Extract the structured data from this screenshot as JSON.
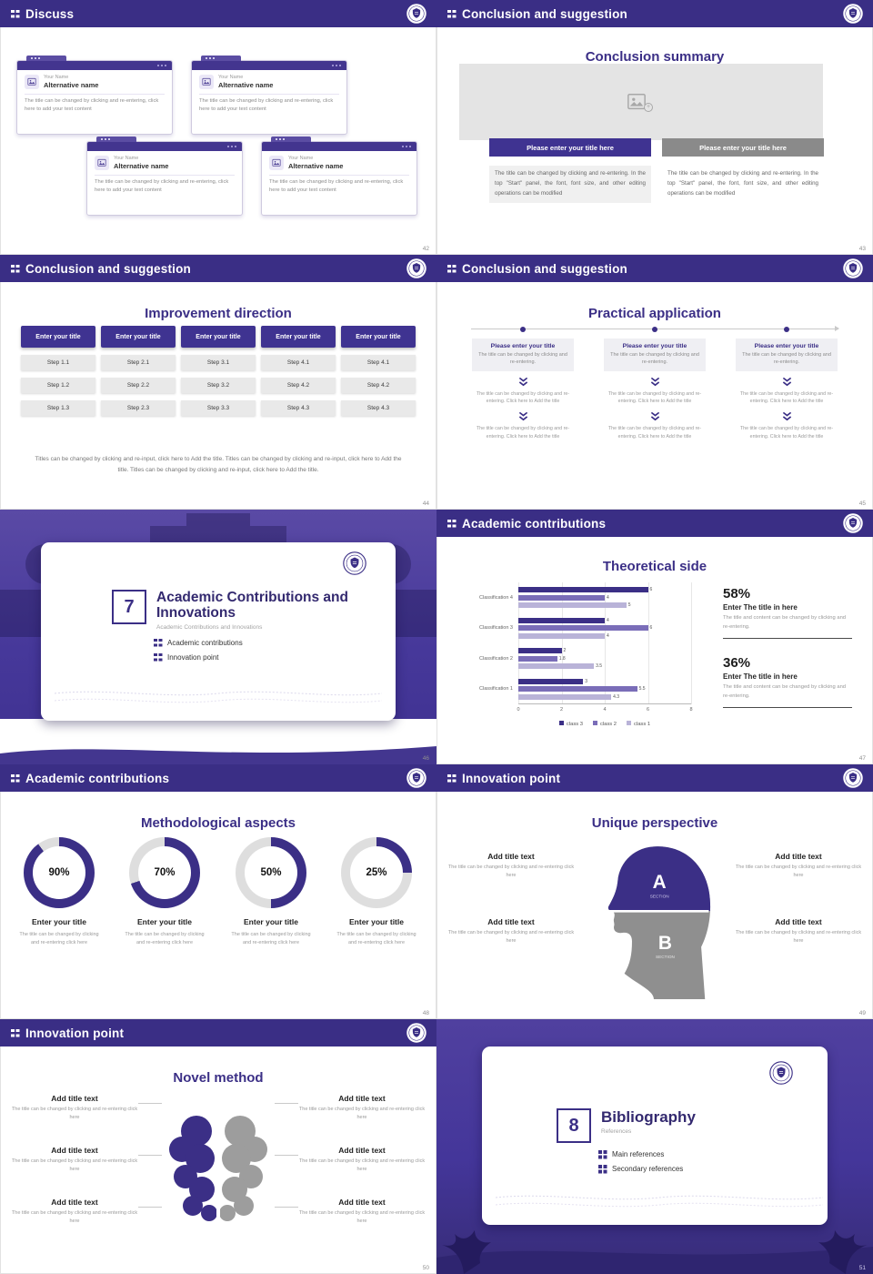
{
  "icons": {
    "header_bullet": "grid-dots",
    "logo": "university-crest",
    "image_placeholder": "picture",
    "chevron": "double-chevron-down"
  },
  "theme": {
    "header_bg": "#3a2e85",
    "accent": "#3b2f86",
    "button_purple": "#3f3391",
    "button_gray": "#8a8a8a",
    "mid_purple": "#7a6db8",
    "light_purple": "#b9b3d8",
    "section_bg": "#46389a",
    "donut_rest": "#dedede"
  },
  "slides": {
    "discuss": {
      "header": "Discuss",
      "page": "42",
      "cards": [
        {
          "name": "Your Name",
          "alt": "Alternative name",
          "body": "The title can be changed by clicking and re-entering, click here to add your text content"
        },
        {
          "name": "Your Name",
          "alt": "Alternative name",
          "body": "The title can be changed by clicking and re-entering, click here to add your text content"
        },
        {
          "name": "Your Name",
          "alt": "Alternative name",
          "body": "The title can be changed by clicking and re-entering, click here to add your text content"
        },
        {
          "name": "Your Name",
          "alt": "Alternative name",
          "body": "The title can be changed by clicking and re-entering, click here to add your text content"
        }
      ]
    },
    "summary": {
      "header": "Conclusion and suggestion",
      "title": "Conclusion summary",
      "page": "43",
      "left": {
        "button": "Please enter your title here",
        "body": "The title can be changed by clicking and re-entering. In the top \"Start\" panel, the font, font size, and other editing operations can be modified"
      },
      "right": {
        "button": "Please enter your title here",
        "body": "The title can be changed by clicking and re-entering. In the top \"Start\" panel, the font, font size, and other editing operations can be modified"
      }
    },
    "improvement": {
      "header": "Conclusion and suggestion",
      "title": "Improvement direction",
      "page": "44",
      "button_label": "Enter your title",
      "columns": [
        {
          "steps": [
            "Step 1.1",
            "Step 1.2",
            "Step 1.3"
          ]
        },
        {
          "steps": [
            "Step 2.1",
            "Step 2.2",
            "Step 2.3"
          ]
        },
        {
          "steps": [
            "Step 3.1",
            "Step 3.2",
            "Step 3.3"
          ]
        },
        {
          "steps": [
            "Step 4.1",
            "Step 4.2",
            "Step 4.3"
          ]
        },
        {
          "steps": [
            "Step 4.1",
            "Step 4.2",
            "Step 4.3"
          ]
        }
      ],
      "footer": "Titles can be changed by clicking and re-input, click here to Add the title. Titles can be changed by clicking and re-input, click here to Add the title. Titles can be changed by clicking and re-input, click here to Add the title."
    },
    "practical": {
      "header": "Conclusion and suggestion",
      "title": "Practical application",
      "page": "45",
      "box_title": "Please enter your title",
      "box_body": "The title can be changed by clicking and re-entering.",
      "step_text": "The title can be changed by clicking and re-entering. Click here to Add the title"
    },
    "section7": {
      "number": "7",
      "title": "Academic Contributions and Innovations",
      "subtitle": "Academic Contributions and Innovations",
      "items": [
        "Academic contributions",
        "Innovation point"
      ],
      "page": "46"
    },
    "theoretical": {
      "header": "Academic contributions",
      "title": "Theoretical side",
      "page": "47",
      "stats": [
        {
          "pct": "58%",
          "title": "Enter The title in here",
          "body": "The title and content can be changed by clicking and re-entering."
        },
        {
          "pct": "36%",
          "title": "Enter The title in here",
          "body": "The title and content can be changed by clicking and re-entering."
        }
      ]
    },
    "methodological": {
      "header": "Academic contributions",
      "title": "Methodological aspects",
      "page": "48",
      "item_title": "Enter your title",
      "item_body": "The title can be changed by clicking and re-entering click here",
      "donuts": [
        {
          "pct": 90,
          "label": "90%"
        },
        {
          "pct": 70,
          "label": "70%"
        },
        {
          "pct": 50,
          "label": "50%"
        },
        {
          "pct": 25,
          "label": "25%"
        }
      ]
    },
    "unique": {
      "header": "Innovation point",
      "title": "Unique perspective",
      "page": "49",
      "item_title": "Add title text",
      "item_body": "The title can be changed by clicking and re-entering click here",
      "section_a": "A",
      "section_b": "B",
      "section_label": "SECTION"
    },
    "novel": {
      "header": "Innovation point",
      "title": "Novel method",
      "page": "50",
      "item_title": "Add title text",
      "item_body": "The title can be changed by clicking and re-entering click here"
    },
    "section8": {
      "number": "8",
      "title": "Bibliography",
      "subtitle": "References",
      "items": [
        "Main references",
        "Secondary references"
      ],
      "page": "51"
    }
  },
  "chart_data": {
    "type": "bar",
    "orientation": "horizontal",
    "title": "Theoretical side",
    "categories": [
      "Classification 4",
      "Classification 3",
      "Classification 2",
      "Classification 1"
    ],
    "series": [
      {
        "name": "class 3",
        "color": "#3b2f86",
        "values": [
          6,
          4,
          2,
          3
        ]
      },
      {
        "name": "class 2",
        "color": "#7a6db8",
        "values": [
          4,
          6,
          1.8,
          5.5
        ]
      },
      {
        "name": "class 1",
        "color": "#b9b3d8",
        "values": [
          5,
          4,
          3.5,
          4.3
        ]
      }
    ],
    "xlim": [
      0,
      8
    ],
    "xticks": [
      0,
      2,
      4,
      6,
      8
    ],
    "legend_position": "bottom",
    "grid": true,
    "data_labels": true
  }
}
